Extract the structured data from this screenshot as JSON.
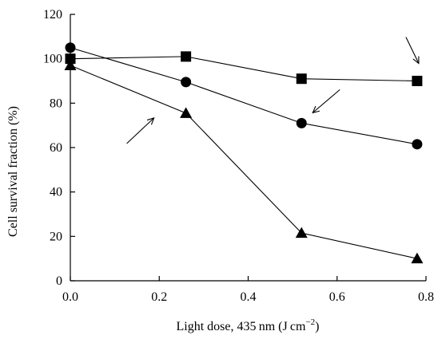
{
  "chart_data": {
    "type": "line",
    "title": "",
    "xlabel_main": "Light dose, 435 nm (J cm",
    "xlabel_sup": "−2",
    "xlabel_end": ")",
    "ylabel": "Cell survival fraction (%)",
    "xlim": [
      0,
      0.8
    ],
    "ylim": [
      0,
      120
    ],
    "xticks": [
      0.0,
      0.2,
      0.4,
      0.6,
      0.8
    ],
    "xtick_labels": [
      "0.0",
      "0.2",
      "0.4",
      "0.6",
      "0.8"
    ],
    "yticks": [
      0,
      20,
      40,
      60,
      80,
      100,
      120
    ],
    "ytick_labels": [
      "0",
      "20",
      "40",
      "60",
      "80",
      "100",
      "120"
    ],
    "grid": false,
    "x": [
      0.0,
      0.26,
      0.52,
      0.78
    ],
    "series": [
      {
        "marker": "square",
        "values": [
          100,
          101,
          91,
          90
        ]
      },
      {
        "marker": "circle",
        "values": [
          105,
          89.5,
          71,
          61.5
        ]
      },
      {
        "marker": "triangle",
        "values": [
          97,
          75.5,
          21.5,
          10
        ]
      }
    ],
    "arrows": [
      {
        "series_index": 0,
        "point_index": 3,
        "direction": "pointing down-right toward the square series"
      },
      {
        "series_index": 1,
        "point_index": 2,
        "direction": "pointing down-left toward the circle series"
      },
      {
        "series_index": 2,
        "point_index": 1,
        "direction": "pointing up-right toward the triangle series"
      }
    ]
  }
}
